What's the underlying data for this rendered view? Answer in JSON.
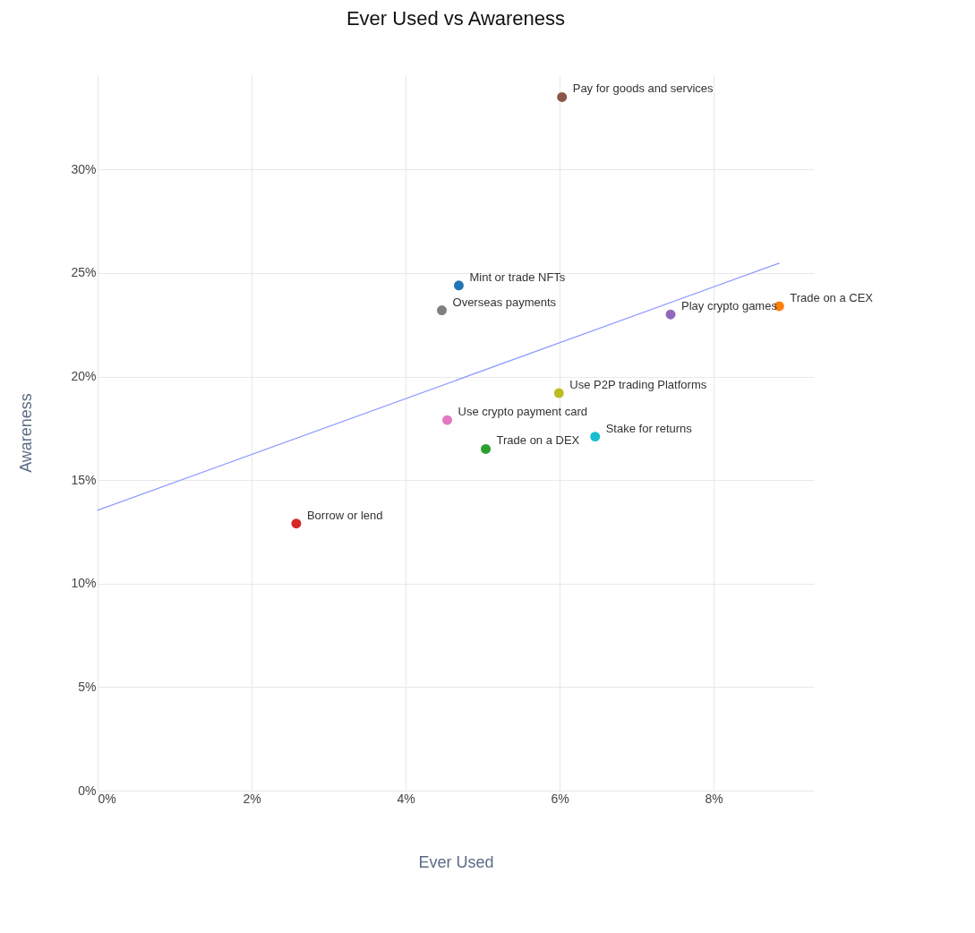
{
  "chart_data": {
    "type": "scatter",
    "title": "Ever Used vs Awareness",
    "xlabel": "Ever Used",
    "ylabel": "Awareness",
    "xlim": [
      0,
      9.3
    ],
    "ylim": [
      0,
      34.6
    ],
    "xticks": [
      {
        "value": 0,
        "label": "0%"
      },
      {
        "value": 2,
        "label": "2%"
      },
      {
        "value": 4,
        "label": "4%"
      },
      {
        "value": 6,
        "label": "6%"
      },
      {
        "value": 8,
        "label": "8%"
      }
    ],
    "yticks": [
      {
        "value": 0,
        "label": "0%"
      },
      {
        "value": 5,
        "label": "5%"
      },
      {
        "value": 10,
        "label": "10%"
      },
      {
        "value": 15,
        "label": "15%"
      },
      {
        "value": 20,
        "label": "20%"
      },
      {
        "value": 25,
        "label": "25%"
      },
      {
        "value": 30,
        "label": "30%"
      }
    ],
    "grid": true,
    "legend": false,
    "marker": "circle",
    "series": [
      {
        "name": "Pay for goods and services",
        "color": "#8c564b",
        "x": [
          6.03
        ],
        "values": [
          33.5
        ]
      },
      {
        "name": "Mint or trade NFTs",
        "color": "#1f77b4",
        "x": [
          4.69
        ],
        "values": [
          24.4
        ]
      },
      {
        "name": "Overseas payments",
        "color": "#7f7f7f",
        "x": [
          4.47
        ],
        "values": [
          23.2
        ]
      },
      {
        "name": "Play crypto games",
        "color": "#9467bd",
        "x": [
          7.44
        ],
        "values": [
          23.0
        ]
      },
      {
        "name": "Trade on a CEX",
        "color": "#ff7f0e",
        "x": [
          8.85
        ],
        "values": [
          23.4
        ]
      },
      {
        "name": "Use P2P trading Platforms",
        "color": "#bcbd22",
        "x": [
          5.99
        ],
        "values": [
          19.2
        ]
      },
      {
        "name": "Use crypto payment card",
        "color": "#e377c2",
        "x": [
          4.54
        ],
        "values": [
          17.9
        ]
      },
      {
        "name": "Stake for returns",
        "color": "#17becf",
        "x": [
          6.46
        ],
        "values": [
          17.1
        ]
      },
      {
        "name": "Trade on a DEX",
        "color": "#2ca02c",
        "x": [
          5.04
        ],
        "values": [
          16.5
        ]
      },
      {
        "name": "Borrow or lend",
        "color": "#d62728",
        "x": [
          2.58
        ],
        "values": [
          12.9
        ]
      },
      {
        "type": "line",
        "marker": "none",
        "color": "#8f9bff",
        "x": [
          0,
          8.85
        ],
        "values": [
          13.54,
          25.48
        ]
      }
    ]
  }
}
